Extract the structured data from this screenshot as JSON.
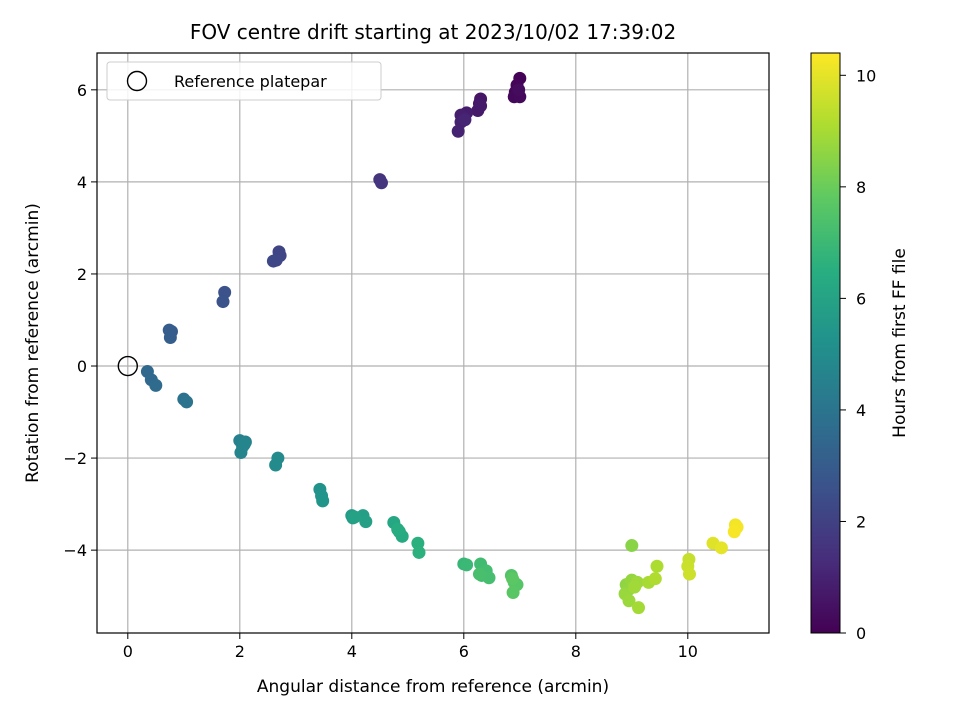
{
  "chart_data": {
    "type": "scatter",
    "title": "FOV centre drift starting at 2023/10/02 17:39:02",
    "xlabel": "Angular distance from reference (arcmin)",
    "ylabel": "Rotation from reference (arcmin)",
    "xlim": [
      -0.55,
      11.45
    ],
    "ylim": [
      -5.8,
      6.8
    ],
    "xticks": [
      0,
      2,
      4,
      6,
      8,
      10
    ],
    "yticks": [
      -4,
      -2,
      0,
      2,
      4,
      6
    ],
    "grid": true,
    "legend": {
      "placement": "top-left",
      "entries": [
        {
          "label": "Reference platepar",
          "marker": "open-circle"
        }
      ]
    },
    "reference_point": {
      "x": 0,
      "y": 0
    },
    "colorbar": {
      "label": "Hours from first FF file",
      "colormap": "viridis",
      "range": [
        0,
        10.4
      ],
      "ticks": [
        0,
        2,
        4,
        6,
        8,
        10
      ]
    },
    "points": [
      {
        "x": 7.0,
        "y": 6.25,
        "c": 0.05
      },
      {
        "x": 6.95,
        "y": 6.1,
        "c": 0.1
      },
      {
        "x": 6.92,
        "y": 5.95,
        "c": 0.15
      },
      {
        "x": 6.9,
        "y": 5.85,
        "c": 0.2
      },
      {
        "x": 7.0,
        "y": 5.85,
        "c": 0.25
      },
      {
        "x": 6.98,
        "y": 6.0,
        "c": 0.3
      },
      {
        "x": 6.3,
        "y": 5.8,
        "c": 0.6
      },
      {
        "x": 6.28,
        "y": 5.7,
        "c": 0.65
      },
      {
        "x": 6.25,
        "y": 5.55,
        "c": 0.7
      },
      {
        "x": 6.3,
        "y": 5.65,
        "c": 0.75
      },
      {
        "x": 6.05,
        "y": 5.5,
        "c": 0.8
      },
      {
        "x": 5.95,
        "y": 5.45,
        "c": 0.85
      },
      {
        "x": 6.0,
        "y": 5.4,
        "c": 0.9
      },
      {
        "x": 5.95,
        "y": 5.3,
        "c": 0.95
      },
      {
        "x": 5.9,
        "y": 5.1,
        "c": 1.0
      },
      {
        "x": 6.02,
        "y": 5.35,
        "c": 1.05
      },
      {
        "x": 4.5,
        "y": 4.05,
        "c": 1.5
      },
      {
        "x": 4.53,
        "y": 3.98,
        "c": 1.55
      },
      {
        "x": 2.7,
        "y": 2.48,
        "c": 2.1
      },
      {
        "x": 2.72,
        "y": 2.4,
        "c": 2.15
      },
      {
        "x": 2.65,
        "y": 2.3,
        "c": 2.2
      },
      {
        "x": 2.6,
        "y": 2.28,
        "c": 2.25
      },
      {
        "x": 1.73,
        "y": 1.6,
        "c": 2.6
      },
      {
        "x": 1.7,
        "y": 1.4,
        "c": 2.65
      },
      {
        "x": 0.78,
        "y": 0.75,
        "c": 3.0
      },
      {
        "x": 0.74,
        "y": 0.78,
        "c": 3.05
      },
      {
        "x": 0.76,
        "y": 0.62,
        "c": 3.1
      },
      {
        "x": 0.35,
        "y": -0.12,
        "c": 3.5
      },
      {
        "x": 0.42,
        "y": -0.3,
        "c": 3.55
      },
      {
        "x": 0.5,
        "y": -0.42,
        "c": 3.6
      },
      {
        "x": 1.0,
        "y": -0.72,
        "c": 3.9
      },
      {
        "x": 1.05,
        "y": -0.78,
        "c": 3.95
      },
      {
        "x": 2.0,
        "y": -1.62,
        "c": 4.5
      },
      {
        "x": 2.1,
        "y": -1.65,
        "c": 4.55
      },
      {
        "x": 2.05,
        "y": -1.75,
        "c": 4.6
      },
      {
        "x": 2.02,
        "y": -1.88,
        "c": 4.65
      },
      {
        "x": 2.08,
        "y": -1.7,
        "c": 4.7
      },
      {
        "x": 2.68,
        "y": -2.0,
        "c": 4.9
      },
      {
        "x": 2.64,
        "y": -2.15,
        "c": 4.95
      },
      {
        "x": 3.43,
        "y": -2.68,
        "c": 5.3
      },
      {
        "x": 3.46,
        "y": -2.82,
        "c": 5.35
      },
      {
        "x": 3.48,
        "y": -2.93,
        "c": 5.4
      },
      {
        "x": 4.0,
        "y": -3.25,
        "c": 5.7
      },
      {
        "x": 4.02,
        "y": -3.3,
        "c": 5.75
      },
      {
        "x": 4.2,
        "y": -3.25,
        "c": 5.8
      },
      {
        "x": 4.25,
        "y": -3.38,
        "c": 5.85
      },
      {
        "x": 4.05,
        "y": -3.28,
        "c": 5.9
      },
      {
        "x": 4.75,
        "y": -3.4,
        "c": 6.2
      },
      {
        "x": 4.85,
        "y": -3.6,
        "c": 6.25
      },
      {
        "x": 4.9,
        "y": -3.7,
        "c": 6.3
      },
      {
        "x": 4.82,
        "y": -3.55,
        "c": 6.35
      },
      {
        "x": 5.18,
        "y": -3.85,
        "c": 6.55
      },
      {
        "x": 5.2,
        "y": -4.05,
        "c": 6.6
      },
      {
        "x": 6.0,
        "y": -4.3,
        "c": 6.9
      },
      {
        "x": 6.05,
        "y": -4.32,
        "c": 6.95
      },
      {
        "x": 6.3,
        "y": -4.3,
        "c": 7.1
      },
      {
        "x": 6.32,
        "y": -4.55,
        "c": 7.15
      },
      {
        "x": 6.4,
        "y": -4.45,
        "c": 7.2
      },
      {
        "x": 6.45,
        "y": -4.6,
        "c": 7.25
      },
      {
        "x": 6.28,
        "y": -4.52,
        "c": 7.3
      },
      {
        "x": 6.85,
        "y": -4.55,
        "c": 7.5
      },
      {
        "x": 6.9,
        "y": -4.7,
        "c": 7.55
      },
      {
        "x": 6.95,
        "y": -4.75,
        "c": 7.6
      },
      {
        "x": 6.88,
        "y": -4.92,
        "c": 7.65
      },
      {
        "x": 6.87,
        "y": -4.62,
        "c": 7.7
      },
      {
        "x": 9.0,
        "y": -3.9,
        "c": 8.5
      },
      {
        "x": 8.9,
        "y": -4.75,
        "c": 8.6
      },
      {
        "x": 8.95,
        "y": -4.85,
        "c": 8.65
      },
      {
        "x": 9.0,
        "y": -4.65,
        "c": 8.7
      },
      {
        "x": 8.88,
        "y": -4.95,
        "c": 8.75
      },
      {
        "x": 8.95,
        "y": -5.1,
        "c": 8.8
      },
      {
        "x": 9.1,
        "y": -4.7,
        "c": 8.85
      },
      {
        "x": 9.05,
        "y": -4.8,
        "c": 8.9
      },
      {
        "x": 9.12,
        "y": -5.25,
        "c": 8.95
      },
      {
        "x": 9.3,
        "y": -4.7,
        "c": 9.0
      },
      {
        "x": 9.45,
        "y": -4.35,
        "c": 9.1
      },
      {
        "x": 9.42,
        "y": -4.62,
        "c": 9.15
      },
      {
        "x": 10.02,
        "y": -4.2,
        "c": 9.5
      },
      {
        "x": 10.0,
        "y": -4.35,
        "c": 9.55
      },
      {
        "x": 10.03,
        "y": -4.52,
        "c": 9.6
      },
      {
        "x": 10.45,
        "y": -3.85,
        "c": 9.9
      },
      {
        "x": 10.6,
        "y": -3.95,
        "c": 10.0
      },
      {
        "x": 10.85,
        "y": -3.45,
        "c": 10.2
      },
      {
        "x": 10.88,
        "y": -3.5,
        "c": 10.25
      },
      {
        "x": 10.83,
        "y": -3.6,
        "c": 10.3
      }
    ]
  }
}
